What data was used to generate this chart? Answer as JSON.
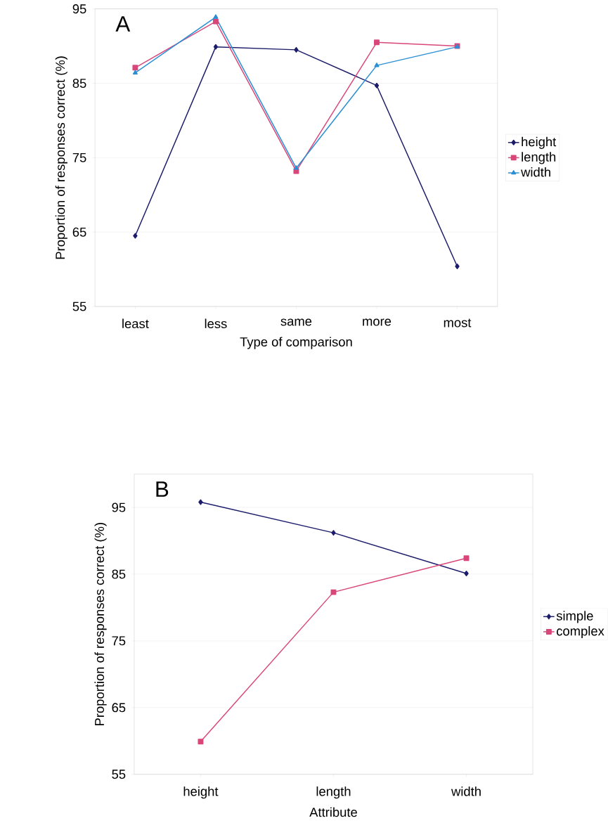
{
  "chart_data": [
    {
      "type": "line",
      "title": "A",
      "xlabel": "Type of comparison",
      "ylabel": "Proportion of responses correct (%)",
      "categories": [
        "least",
        "less",
        "same",
        "more",
        "most"
      ],
      "series": [
        {
          "name": "height",
          "color": "#1c1c6b",
          "marker": "diamond",
          "values": [
            64.5,
            89.9,
            89.5,
            84.7,
            60.4
          ]
        },
        {
          "name": "length",
          "color": "#d9467a",
          "marker": "square",
          "values": [
            87.1,
            93.3,
            73.2,
            90.5,
            90.0
          ]
        },
        {
          "name": "width",
          "color": "#2a8fd4",
          "marker": "triangle",
          "values": [
            86.4,
            93.9,
            73.6,
            87.4,
            89.9
          ]
        }
      ],
      "ylim": [
        55,
        95
      ],
      "yticks": [
        55,
        65,
        75,
        85,
        95
      ],
      "grid": "y",
      "legend": "right"
    },
    {
      "type": "line",
      "title": "B",
      "xlabel": "Attribute",
      "ylabel": "Proportion of responses correct (%)",
      "categories": [
        "height",
        "length",
        "width"
      ],
      "series": [
        {
          "name": "simple",
          "color": "#1c1c6b",
          "marker": "diamond",
          "values": [
            95.8,
            91.2,
            85.1
          ]
        },
        {
          "name": "complex",
          "color": "#d9467a",
          "marker": "square",
          "values": [
            59.9,
            82.3,
            87.4
          ]
        }
      ],
      "ylim": [
        55,
        100
      ],
      "yticks": [
        55,
        65,
        75,
        85,
        95
      ],
      "grid": "y",
      "legend": "right"
    }
  ]
}
